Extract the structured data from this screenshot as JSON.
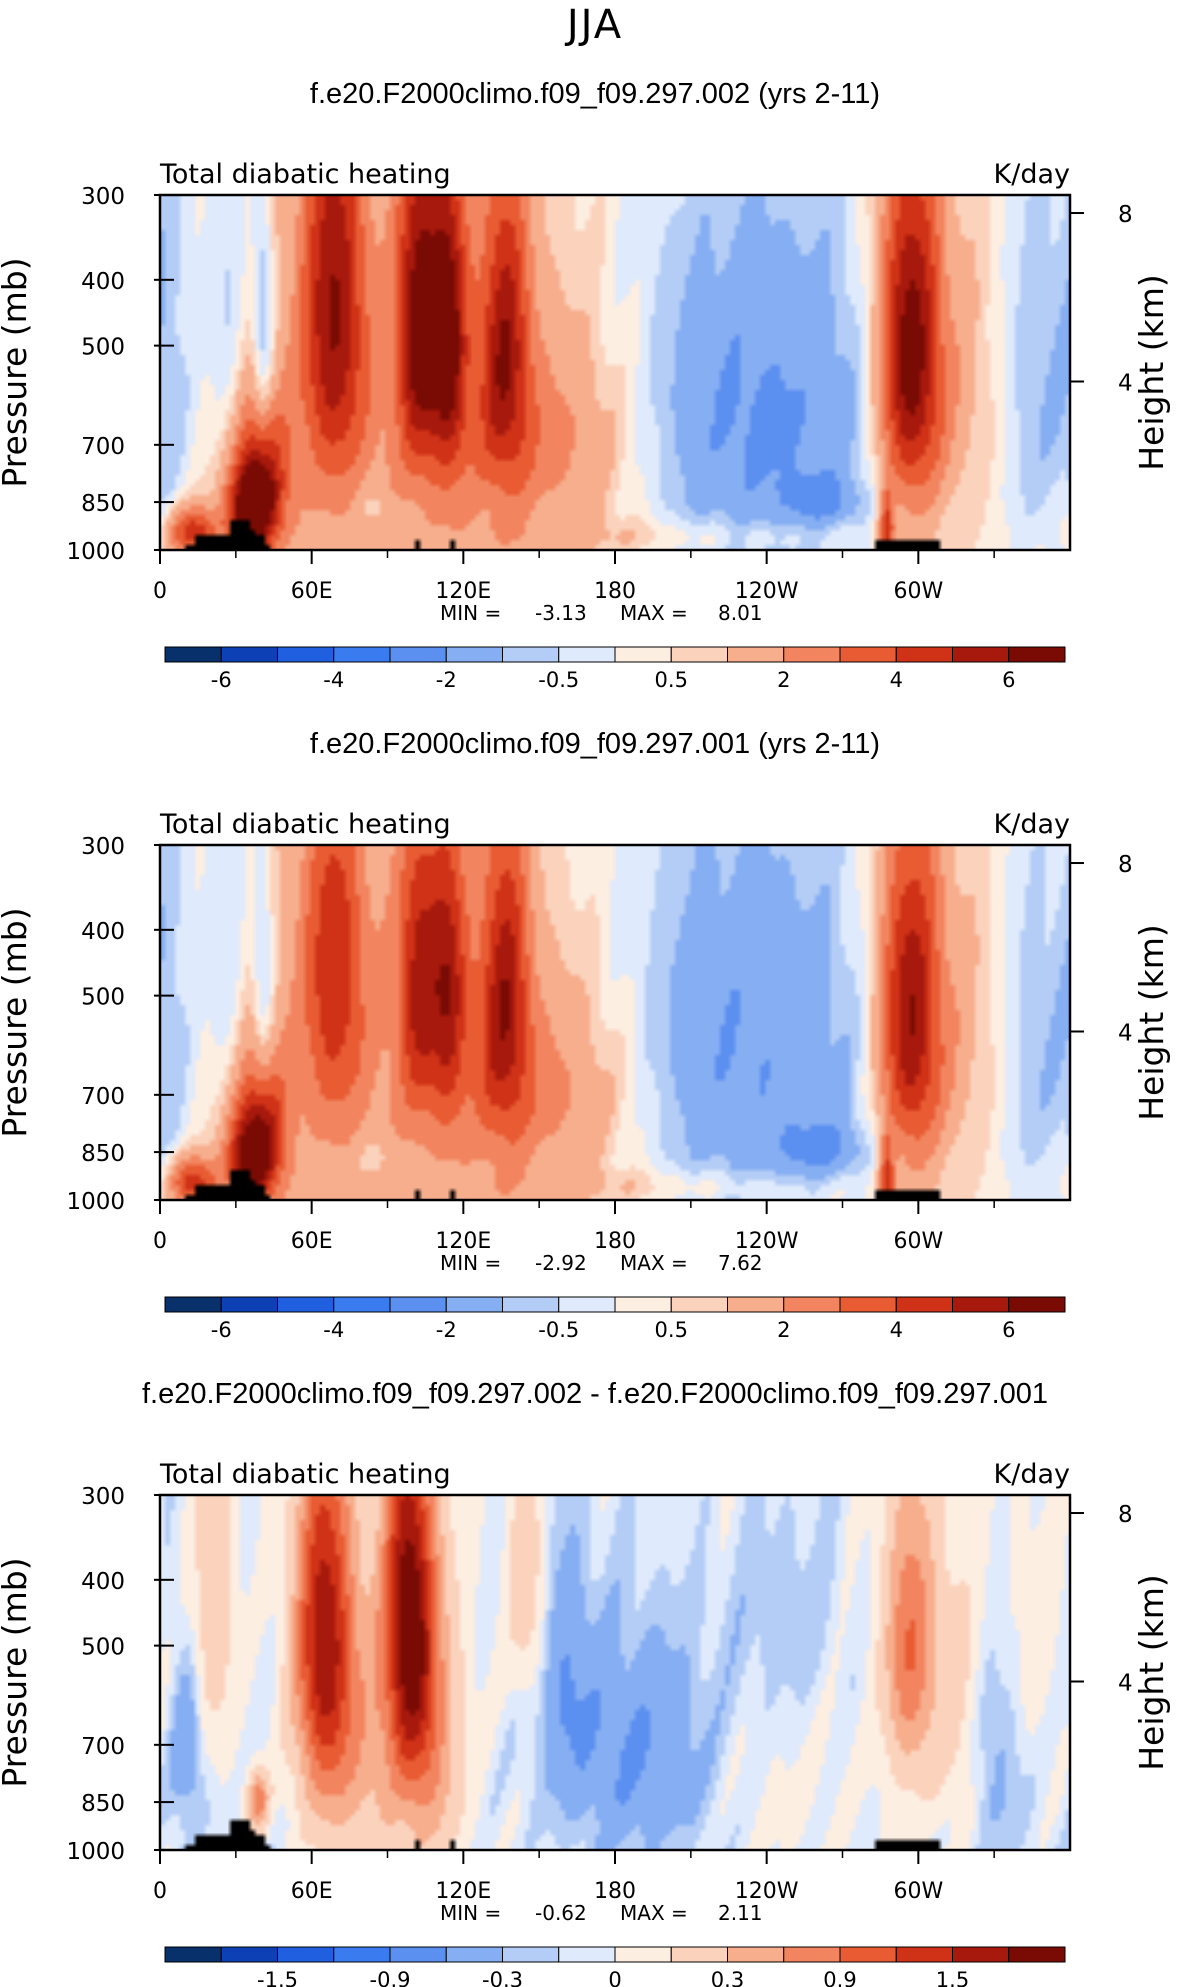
{
  "page_title": "JJA",
  "colorbars": {
    "main": {
      "colors": [
        "#08306b",
        "#0d3fb5",
        "#1f5fe0",
        "#3b7bf0",
        "#5b8ff0",
        "#86aef3",
        "#b3cdf6",
        "#dfeafc",
        "#fdeee2",
        "#fbd3bd",
        "#f7ae8d",
        "#f2855f",
        "#e85b33",
        "#cf3216",
        "#a8190d",
        "#7a0b04"
      ],
      "labels": [
        "-6",
        "-4",
        "-2",
        "-0.5",
        "0.5",
        "2",
        "4",
        "6"
      ],
      "label_positions": [
        1,
        3,
        5,
        7,
        9,
        11,
        13,
        15
      ]
    },
    "diff": {
      "colors": [
        "#08306b",
        "#0d3fb5",
        "#1f5fe0",
        "#3b7bf0",
        "#5b8ff0",
        "#86aef3",
        "#b3cdf6",
        "#dfeafc",
        "#fdeee2",
        "#fbd3bd",
        "#f7ae8d",
        "#f2855f",
        "#e85b33",
        "#cf3216",
        "#a8190d",
        "#7a0b04"
      ],
      "labels": [
        "-1.5",
        "-0.9",
        "-0.3",
        "0",
        "0.3",
        "0.9",
        "1.5"
      ],
      "label_positions": [
        2,
        4,
        6,
        8,
        10,
        12,
        14
      ]
    }
  },
  "chart_data": [
    {
      "type": "heatmap",
      "title": "f.e20.F2000climo.f09_f09.297.002 (yrs 2-11)",
      "left_label": "Total diabatic heating",
      "right_label": "K/day",
      "ylabel": "Pressure (mb)",
      "y2label": "Height (km)",
      "x_ticks": [
        "0",
        "60E",
        "120E",
        "180",
        "120W",
        "60W"
      ],
      "x_tick_lon": [
        0,
        60,
        120,
        180,
        240,
        300
      ],
      "xlim": [
        0,
        360
      ],
      "y_ticks": [
        "300",
        "400",
        "500",
        "700",
        "850",
        "1000"
      ],
      "y_tick_values": [
        300,
        400,
        500,
        700,
        850,
        1000
      ],
      "ylim": [
        300,
        1000
      ],
      "y2_ticks": [
        "8",
        "4"
      ],
      "y2_tick_values": [
        8,
        4
      ],
      "min_label": "MIN =",
      "min_value": "-3.13",
      "max_label": "MAX =",
      "max_value": "8.01",
      "colorbar": "main",
      "features": [
        {
          "lon": 38,
          "p": 820,
          "sx": 8,
          "sy": 150,
          "v": 5.5
        },
        {
          "lon": 12,
          "p": 950,
          "sx": 7,
          "sy": 60,
          "v": 4.5
        },
        {
          "lon": 34,
          "p": 880,
          "sx": 6,
          "sy": 80,
          "v": 3.5
        },
        {
          "lon": 68,
          "p": 430,
          "sx": 9,
          "sy": 230,
          "v": 4.8
        },
        {
          "lon": 102,
          "p": 450,
          "sx": 6,
          "sy": 190,
          "v": 5.5
        },
        {
          "lon": 114,
          "p": 470,
          "sx": 5,
          "sy": 190,
          "v": 5.0
        },
        {
          "lon": 136,
          "p": 480,
          "sx": 7,
          "sy": 200,
          "v": 4.2
        },
        {
          "lon": 155,
          "p": 700,
          "sx": 28,
          "sy": 180,
          "v": 1.6
        },
        {
          "lon": 95,
          "p": 650,
          "sx": 55,
          "sy": 330,
          "v": 1.4
        },
        {
          "lon": 297,
          "p": 520,
          "sx": 9,
          "sy": 230,
          "v": 6.5
        },
        {
          "lon": 288,
          "p": 950,
          "sx": 2,
          "sy": 100,
          "v": 4.0
        },
        {
          "lon": 320,
          "p": 600,
          "sx": 18,
          "sy": 250,
          "v": 1.4
        },
        {
          "lon": 5,
          "p": 500,
          "sx": 8,
          "sy": 400,
          "v": -0.9
        },
        {
          "lon": 26,
          "p": 500,
          "sx": 6,
          "sy": 250,
          "v": -1.4
        },
        {
          "lon": 40,
          "p": 480,
          "sx": 3,
          "sy": 160,
          "v": -2.2
        },
        {
          "lon": 235,
          "p": 650,
          "sx": 40,
          "sy": 300,
          "v": -2.6
        },
        {
          "lon": 262,
          "p": 850,
          "sx": 10,
          "sy": 50,
          "v": -1.5
        },
        {
          "lon": 345,
          "p": 600,
          "sx": 14,
          "sy": 300,
          "v": -1.8
        },
        {
          "lon": 85,
          "p": 870,
          "sx": 5,
          "sy": 40,
          "v": -0.8
        },
        {
          "lon": 200,
          "p": 960,
          "sx": 60,
          "sy": 40,
          "v": 0.8
        }
      ]
    },
    {
      "type": "heatmap",
      "title": "f.e20.F2000climo.f09_f09.297.001 (yrs 2-11)",
      "left_label": "Total diabatic heating",
      "right_label": "K/day",
      "ylabel": "Pressure (mb)",
      "y2label": "Height (km)",
      "x_ticks": [
        "0",
        "60E",
        "120E",
        "180",
        "120W",
        "60W"
      ],
      "x_tick_lon": [
        0,
        60,
        120,
        180,
        240,
        300
      ],
      "xlim": [
        0,
        360
      ],
      "y_ticks": [
        "300",
        "400",
        "500",
        "700",
        "850",
        "1000"
      ],
      "y_tick_values": [
        300,
        400,
        500,
        700,
        850,
        1000
      ],
      "ylim": [
        300,
        1000
      ],
      "y2_ticks": [
        "8",
        "4"
      ],
      "y2_tick_values": [
        8,
        4
      ],
      "min_label": "MIN =",
      "min_value": "-2.92",
      "max_label": "MAX =",
      "max_value": "7.62",
      "colorbar": "main",
      "features": [
        {
          "lon": 38,
          "p": 820,
          "sx": 8,
          "sy": 150,
          "v": 5.0
        },
        {
          "lon": 12,
          "p": 950,
          "sx": 7,
          "sy": 60,
          "v": 4.3
        },
        {
          "lon": 34,
          "p": 880,
          "sx": 6,
          "sy": 80,
          "v": 3.2
        },
        {
          "lon": 68,
          "p": 440,
          "sx": 9,
          "sy": 210,
          "v": 3.6
        },
        {
          "lon": 102,
          "p": 460,
          "sx": 6,
          "sy": 180,
          "v": 4.0
        },
        {
          "lon": 114,
          "p": 470,
          "sx": 5,
          "sy": 180,
          "v": 3.8
        },
        {
          "lon": 136,
          "p": 480,
          "sx": 7,
          "sy": 200,
          "v": 4.2
        },
        {
          "lon": 155,
          "p": 700,
          "sx": 28,
          "sy": 180,
          "v": 1.6
        },
        {
          "lon": 95,
          "p": 650,
          "sx": 55,
          "sy": 330,
          "v": 1.3
        },
        {
          "lon": 297,
          "p": 540,
          "sx": 9,
          "sy": 230,
          "v": 5.6
        },
        {
          "lon": 288,
          "p": 950,
          "sx": 2,
          "sy": 100,
          "v": 4.0
        },
        {
          "lon": 320,
          "p": 600,
          "sx": 18,
          "sy": 250,
          "v": 1.3
        },
        {
          "lon": 5,
          "p": 500,
          "sx": 8,
          "sy": 400,
          "v": -0.9
        },
        {
          "lon": 26,
          "p": 500,
          "sx": 6,
          "sy": 250,
          "v": -1.3
        },
        {
          "lon": 40,
          "p": 480,
          "sx": 3,
          "sy": 160,
          "v": -1.8
        },
        {
          "lon": 230,
          "p": 620,
          "sx": 40,
          "sy": 320,
          "v": -2.4
        },
        {
          "lon": 262,
          "p": 850,
          "sx": 12,
          "sy": 60,
          "v": -1.6
        },
        {
          "lon": 345,
          "p": 620,
          "sx": 14,
          "sy": 300,
          "v": -1.7
        },
        {
          "lon": 85,
          "p": 870,
          "sx": 5,
          "sy": 40,
          "v": -0.8
        },
        {
          "lon": 200,
          "p": 960,
          "sx": 60,
          "sy": 40,
          "v": 0.8
        }
      ]
    },
    {
      "type": "heatmap",
      "title": "f.e20.F2000climo.f09_f09.297.002 - f.e20.F2000climo.f09_f09.297.001",
      "left_label": "Total diabatic heating",
      "right_label": "K/day",
      "ylabel": "Pressure (mb)",
      "y2label": "Height (km)",
      "x_ticks": [
        "0",
        "60E",
        "120E",
        "180",
        "120W",
        "60W"
      ],
      "x_tick_lon": [
        0,
        60,
        120,
        180,
        240,
        300
      ],
      "xlim": [
        0,
        360
      ],
      "y_ticks": [
        "300",
        "400",
        "500",
        "700",
        "850",
        "1000"
      ],
      "y_tick_values": [
        300,
        400,
        500,
        700,
        850,
        1000
      ],
      "ylim": [
        300,
        1000
      ],
      "y2_ticks": [
        "8",
        "4"
      ],
      "y2_tick_values": [
        8,
        4
      ],
      "min_label": "MIN =",
      "min_value": "-0.62",
      "max_label": "MAX =",
      "max_value": "2.11",
      "colorbar": "diff",
      "features": [
        {
          "lon": 64,
          "p": 480,
          "sx": 8,
          "sy": 220,
          "v": 1.8
        },
        {
          "lon": 98,
          "p": 440,
          "sx": 7,
          "sy": 200,
          "v": 2.0
        },
        {
          "lon": 106,
          "p": 700,
          "sx": 9,
          "sy": 250,
          "v": 0.8
        },
        {
          "lon": 78,
          "p": 720,
          "sx": 14,
          "sy": 260,
          "v": 0.6
        },
        {
          "lon": 38,
          "p": 850,
          "sx": 3,
          "sy": 60,
          "v": 1.0
        },
        {
          "lon": 20,
          "p": 430,
          "sx": 6,
          "sy": 180,
          "v": 0.5
        },
        {
          "lon": 145,
          "p": 400,
          "sx": 5,
          "sy": 120,
          "v": 0.5
        },
        {
          "lon": 297,
          "p": 500,
          "sx": 7,
          "sy": 180,
          "v": 1.1
        },
        {
          "lon": 315,
          "p": 600,
          "sx": 8,
          "sy": 220,
          "v": 0.4
        },
        {
          "lon": 160,
          "p": 560,
          "sx": 8,
          "sy": 180,
          "v": -0.3
        },
        {
          "lon": 190,
          "p": 720,
          "sx": 22,
          "sy": 220,
          "v": -0.45
        },
        {
          "lon": 245,
          "p": 450,
          "sx": 20,
          "sy": 150,
          "v": -0.2
        },
        {
          "lon": 10,
          "p": 700,
          "sx": 5,
          "sy": 180,
          "v": -0.3
        },
        {
          "lon": 330,
          "p": 720,
          "sx": 10,
          "sy": 200,
          "v": -0.25
        },
        {
          "lon": 345,
          "p": 500,
          "sx": 10,
          "sy": 200,
          "v": 0.15
        },
        {
          "lon": 220,
          "p": 600,
          "sx": 50,
          "sy": 400,
          "v": 0.12
        }
      ]
    }
  ]
}
